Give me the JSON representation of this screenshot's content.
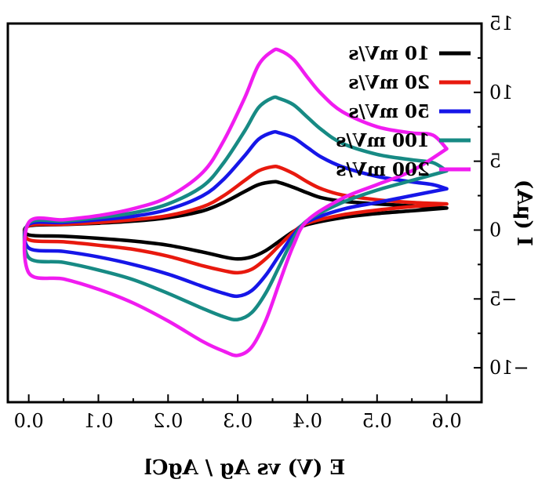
{
  "chart_data": {
    "type": "line",
    "title": "",
    "xlabel": "E (V) vs Ag / AgCl",
    "ylabel": "I (μA)",
    "xlim": [
      0.65,
      -0.03
    ],
    "ylim": [
      -12.5,
      15
    ],
    "x_ticks": [
      "0.6",
      "0.5",
      "0.4",
      "0.3",
      "0.2",
      "0.1",
      "0.0"
    ],
    "y_ticks": [
      "15",
      "10",
      "5",
      "0",
      "−5",
      "−10"
    ],
    "x_tick_values": [
      0.6,
      0.5,
      0.4,
      0.3,
      0.2,
      0.1,
      0.0
    ],
    "y_tick_values": [
      15,
      10,
      5,
      0,
      -5,
      -10
    ],
    "grid": false,
    "legend_position": "top-right",
    "mirrored": true,
    "series": [
      {
        "name": "10 mV/s",
        "color": "#000000",
        "points": [
          [
            0.6,
            1.6
          ],
          [
            0.55,
            1.75
          ],
          [
            0.5,
            1.9
          ],
          [
            0.45,
            2.1
          ],
          [
            0.42,
            2.35
          ],
          [
            0.4,
            2.7
          ],
          [
            0.38,
            3.1
          ],
          [
            0.36,
            3.45
          ],
          [
            0.35,
            3.5
          ],
          [
            0.33,
            3.3
          ],
          [
            0.31,
            2.8
          ],
          [
            0.28,
            2.0
          ],
          [
            0.25,
            1.4
          ],
          [
            0.2,
            0.9
          ],
          [
            0.15,
            0.65
          ],
          [
            0.1,
            0.5
          ],
          [
            0.05,
            0.4
          ],
          [
            0.0,
            0.3
          ],
          [
            0.0,
            -0.35
          ],
          [
            0.05,
            -0.45
          ],
          [
            0.1,
            -0.6
          ],
          [
            0.15,
            -0.8
          ],
          [
            0.2,
            -1.1
          ],
          [
            0.25,
            -1.6
          ],
          [
            0.28,
            -1.95
          ],
          [
            0.3,
            -2.1
          ],
          [
            0.32,
            -1.95
          ],
          [
            0.34,
            -1.5
          ],
          [
            0.36,
            -0.8
          ],
          [
            0.38,
            -0.1
          ],
          [
            0.4,
            0.4
          ],
          [
            0.45,
            0.9
          ],
          [
            0.5,
            1.2
          ],
          [
            0.55,
            1.4
          ],
          [
            0.6,
            1.6
          ]
        ]
      },
      {
        "name": "20 mV/s",
        "color": "#e8190e",
        "points": [
          [
            0.6,
            1.9
          ],
          [
            0.55,
            2.0
          ],
          [
            0.5,
            2.2
          ],
          [
            0.45,
            2.55
          ],
          [
            0.42,
            3.0
          ],
          [
            0.4,
            3.5
          ],
          [
            0.38,
            4.1
          ],
          [
            0.36,
            4.55
          ],
          [
            0.35,
            4.6
          ],
          [
            0.33,
            4.3
          ],
          [
            0.31,
            3.6
          ],
          [
            0.28,
            2.5
          ],
          [
            0.25,
            1.7
          ],
          [
            0.2,
            1.05
          ],
          [
            0.15,
            0.75
          ],
          [
            0.1,
            0.55
          ],
          [
            0.05,
            0.42
          ],
          [
            0.0,
            0.32
          ],
          [
            0.0,
            -0.7
          ],
          [
            0.05,
            -0.85
          ],
          [
            0.1,
            -1.1
          ],
          [
            0.15,
            -1.4
          ],
          [
            0.2,
            -1.9
          ],
          [
            0.25,
            -2.6
          ],
          [
            0.28,
            -2.95
          ],
          [
            0.3,
            -3.1
          ],
          [
            0.32,
            -2.85
          ],
          [
            0.34,
            -2.1
          ],
          [
            0.36,
            -1.1
          ],
          [
            0.38,
            -0.15
          ],
          [
            0.4,
            0.5
          ],
          [
            0.45,
            1.1
          ],
          [
            0.5,
            1.45
          ],
          [
            0.55,
            1.7
          ],
          [
            0.6,
            1.9
          ]
        ]
      },
      {
        "name": "50 mV/s",
        "color": "#1616e8",
        "points": [
          [
            0.6,
            3.0
          ],
          [
            0.58,
            3.3
          ],
          [
            0.55,
            3.5
          ],
          [
            0.5,
            3.9
          ],
          [
            0.45,
            4.6
          ],
          [
            0.42,
            5.3
          ],
          [
            0.4,
            6.0
          ],
          [
            0.38,
            6.7
          ],
          [
            0.36,
            7.05
          ],
          [
            0.35,
            7.1
          ],
          [
            0.33,
            6.6
          ],
          [
            0.31,
            5.4
          ],
          [
            0.28,
            3.7
          ],
          [
            0.25,
            2.5
          ],
          [
            0.2,
            1.5
          ],
          [
            0.15,
            1.0
          ],
          [
            0.1,
            0.75
          ],
          [
            0.05,
            0.55
          ],
          [
            0.0,
            0.42
          ],
          [
            0.0,
            -1.3
          ],
          [
            0.05,
            -1.55
          ],
          [
            0.1,
            -1.95
          ],
          [
            0.15,
            -2.5
          ],
          [
            0.2,
            -3.2
          ],
          [
            0.25,
            -4.1
          ],
          [
            0.28,
            -4.6
          ],
          [
            0.3,
            -4.8
          ],
          [
            0.32,
            -4.4
          ],
          [
            0.34,
            -3.3
          ],
          [
            0.36,
            -1.8
          ],
          [
            0.38,
            -0.35
          ],
          [
            0.4,
            0.6
          ],
          [
            0.45,
            1.5
          ],
          [
            0.5,
            2.0
          ],
          [
            0.55,
            2.5
          ],
          [
            0.6,
            3.0
          ]
        ]
      },
      {
        "name": "100 mV/s",
        "color": "#178a84",
        "points": [
          [
            0.6,
            4.3
          ],
          [
            0.58,
            4.9
          ],
          [
            0.55,
            5.1
          ],
          [
            0.5,
            5.5
          ],
          [
            0.45,
            6.3
          ],
          [
            0.42,
            7.3
          ],
          [
            0.4,
            8.2
          ],
          [
            0.38,
            9.1
          ],
          [
            0.36,
            9.55
          ],
          [
            0.35,
            9.6
          ],
          [
            0.33,
            8.9
          ],
          [
            0.31,
            7.2
          ],
          [
            0.28,
            4.9
          ],
          [
            0.25,
            3.2
          ],
          [
            0.2,
            1.9
          ],
          [
            0.15,
            1.25
          ],
          [
            0.1,
            0.9
          ],
          [
            0.05,
            0.65
          ],
          [
            0.0,
            0.5
          ],
          [
            0.0,
            -2.0
          ],
          [
            0.05,
            -2.35
          ],
          [
            0.1,
            -2.9
          ],
          [
            0.15,
            -3.6
          ],
          [
            0.2,
            -4.6
          ],
          [
            0.25,
            -5.7
          ],
          [
            0.28,
            -6.3
          ],
          [
            0.3,
            -6.5
          ],
          [
            0.32,
            -6.0
          ],
          [
            0.34,
            -4.6
          ],
          [
            0.36,
            -2.6
          ],
          [
            0.38,
            -0.6
          ],
          [
            0.4,
            0.7
          ],
          [
            0.45,
            2.0
          ],
          [
            0.5,
            2.9
          ],
          [
            0.55,
            3.6
          ],
          [
            0.6,
            4.3
          ]
        ]
      },
      {
        "name": "200 mV/s",
        "color": "#f01cf0",
        "points": [
          [
            0.6,
            5.9
          ],
          [
            0.58,
            6.9
          ],
          [
            0.55,
            7.05
          ],
          [
            0.5,
            7.5
          ],
          [
            0.45,
            8.6
          ],
          [
            0.42,
            9.9
          ],
          [
            0.4,
            11.1
          ],
          [
            0.38,
            12.4
          ],
          [
            0.36,
            13.05
          ],
          [
            0.35,
            13.0
          ],
          [
            0.33,
            12.0
          ],
          [
            0.31,
            9.6
          ],
          [
            0.28,
            6.5
          ],
          [
            0.25,
            4.2
          ],
          [
            0.2,
            2.4
          ],
          [
            0.15,
            1.55
          ],
          [
            0.1,
            1.05
          ],
          [
            0.05,
            0.75
          ],
          [
            0.0,
            0.55
          ],
          [
            0.0,
            -3.1
          ],
          [
            0.05,
            -3.55
          ],
          [
            0.1,
            -4.3
          ],
          [
            0.15,
            -5.3
          ],
          [
            0.2,
            -6.6
          ],
          [
            0.25,
            -8.1
          ],
          [
            0.28,
            -8.8
          ],
          [
            0.3,
            -9.1
          ],
          [
            0.32,
            -8.5
          ],
          [
            0.34,
            -6.6
          ],
          [
            0.36,
            -3.8
          ],
          [
            0.38,
            -1.1
          ],
          [
            0.4,
            0.7
          ],
          [
            0.45,
            2.3
          ],
          [
            0.5,
            3.3
          ],
          [
            0.55,
            4.3
          ],
          [
            0.6,
            5.9
          ]
        ]
      }
    ]
  }
}
